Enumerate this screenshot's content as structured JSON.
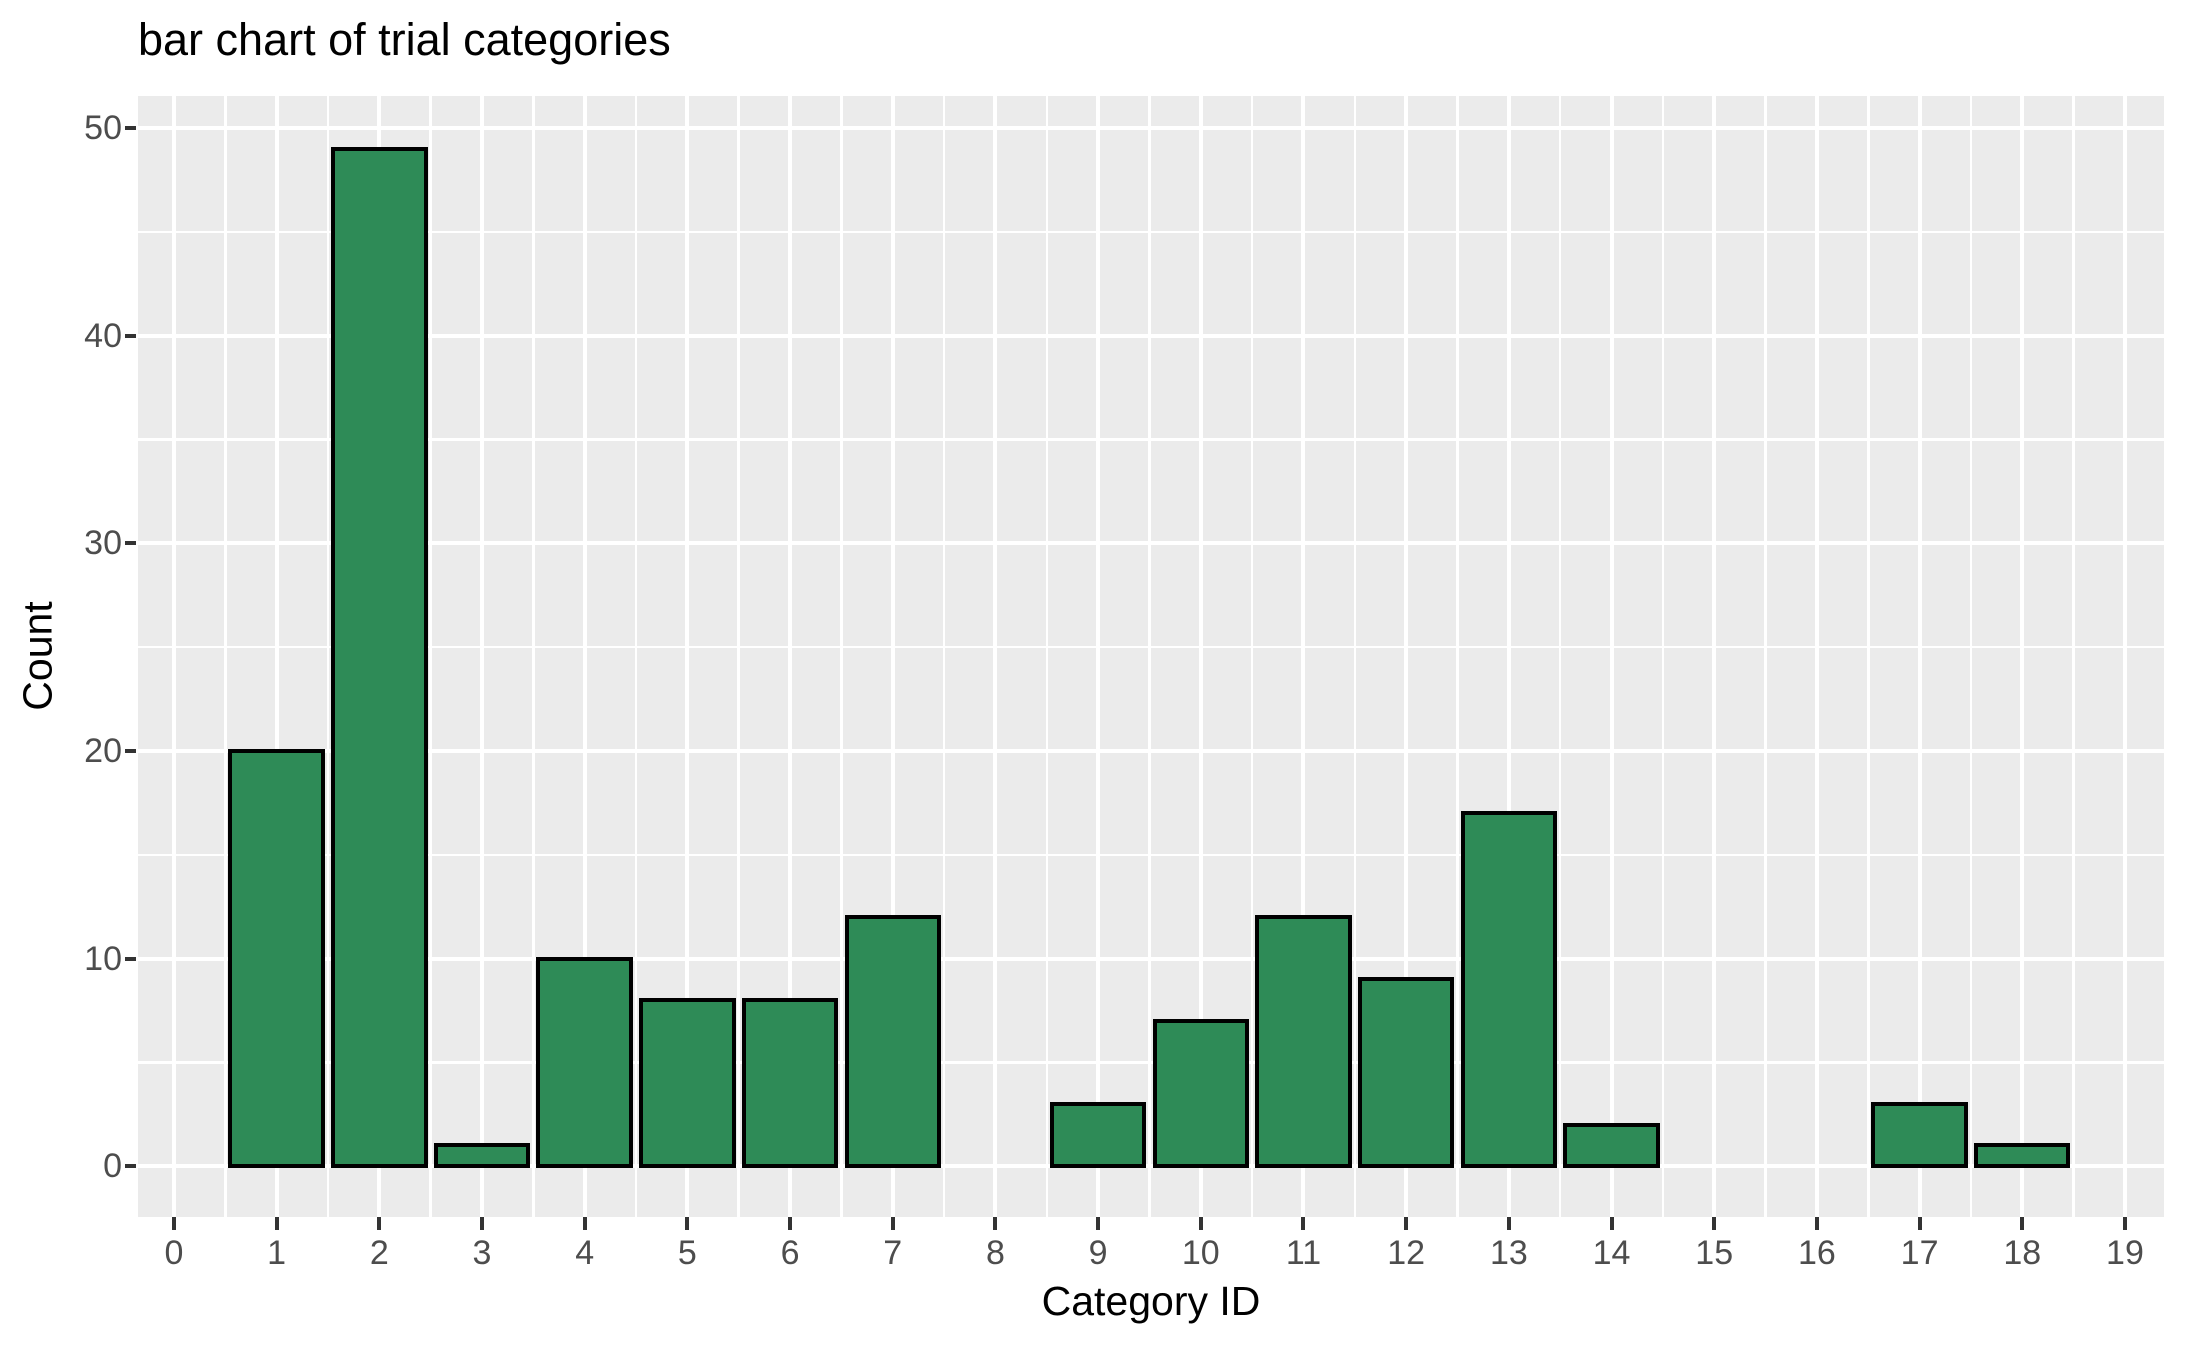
{
  "chart_data": {
    "type": "bar",
    "title": "bar chart of trial categories",
    "xlabel": "Category ID",
    "ylabel": "Count",
    "categories": [
      0,
      1,
      2,
      3,
      4,
      5,
      6,
      7,
      8,
      9,
      10,
      11,
      12,
      13,
      14,
      15,
      16,
      17,
      18,
      19
    ],
    "values": [
      0,
      20,
      49,
      1,
      10,
      8,
      8,
      12,
      0,
      3,
      7,
      12,
      9,
      17,
      2,
      0,
      0,
      3,
      1,
      0
    ],
    "x_ticks": [
      0,
      1,
      2,
      3,
      4,
      5,
      6,
      7,
      8,
      9,
      10,
      11,
      12,
      13,
      14,
      15,
      16,
      17,
      18,
      19
    ],
    "y_ticks": [
      0,
      10,
      20,
      30,
      40,
      50
    ],
    "y_minor_ticks": [
      5,
      15,
      25,
      35,
      45
    ],
    "xlim": [
      -0.35,
      19.38
    ],
    "ylim": [
      -2.45,
      51.55
    ],
    "bar_width": 0.9,
    "grid": "major-and-minor",
    "legend_position": "none",
    "colors": {
      "bar_fill": "#2e8b57",
      "bar_stroke": "#000000",
      "panel_background": "#ebebeb",
      "gridline": "#ffffff",
      "tick_mark": "#333333",
      "tick_label": "#4d4d4d",
      "axis_title": "#000000",
      "title": "#000000"
    }
  }
}
